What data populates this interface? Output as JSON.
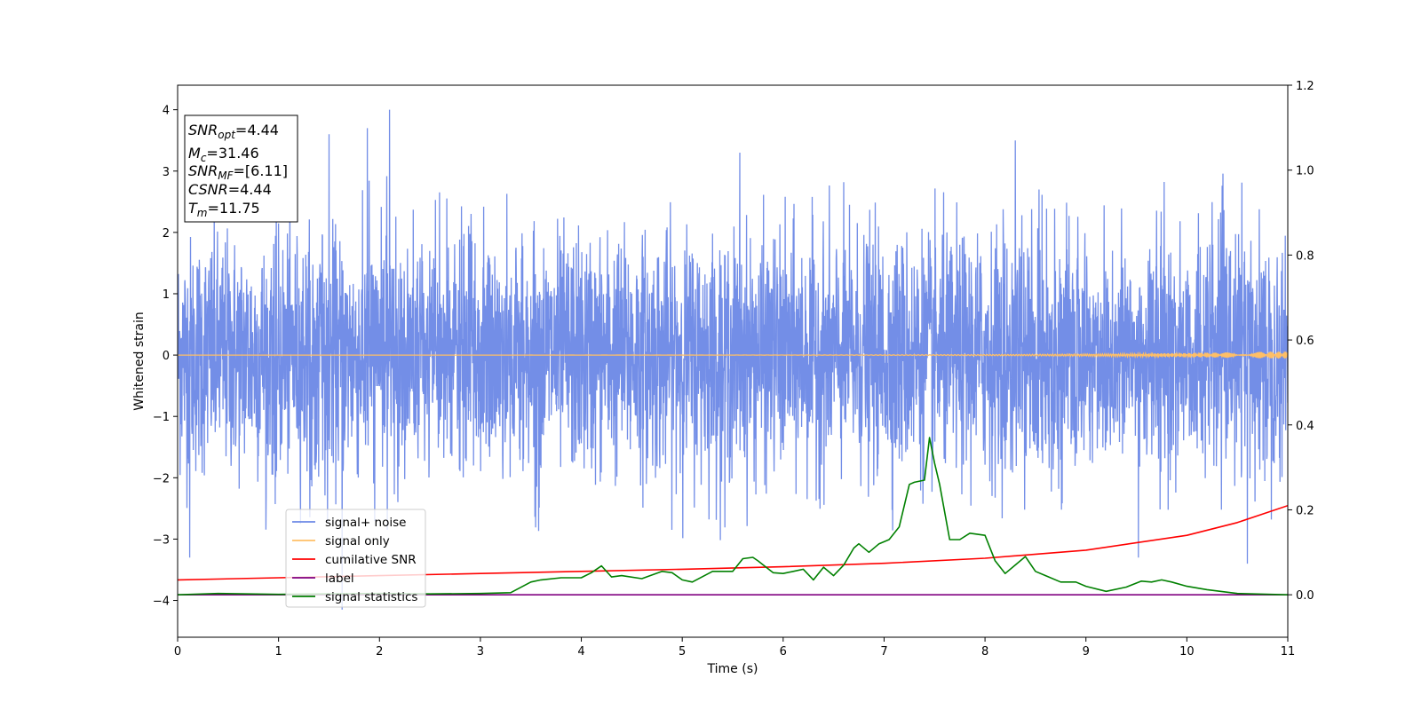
{
  "chart_data": {
    "type": "line",
    "xlabel": "Time (s)",
    "ylabel": "Whitened strain",
    "xlim": [
      0,
      11
    ],
    "ylim": [
      -4.6,
      4.4
    ],
    "y2lim": [
      -0.1,
      1.2
    ],
    "x_ticks": [
      0,
      1,
      2,
      3,
      4,
      5,
      6,
      7,
      8,
      9,
      10,
      11
    ],
    "y_ticks": [
      -4,
      -3,
      -2,
      -1,
      0,
      1,
      2,
      3,
      4
    ],
    "y2_ticks": [
      "0.0",
      "0.2",
      "0.4",
      "0.6",
      "0.8",
      "1.0",
      "1.2"
    ],
    "grid": false,
    "legend_position": "lower-left",
    "stats_box": {
      "snr_opt": "4.44",
      "mc": "31.46",
      "snr_mf": "[6.11]",
      "csnr": "4.44",
      "tm": "11.75"
    },
    "series": [
      {
        "name": "signal+ noise",
        "color": "#6b88e6",
        "axis": "left",
        "description_values": "dense noise between about -2.8 and 3.0 with spikes",
        "peaks": [
          {
            "x": 2.1,
            "y": 4.0
          },
          {
            "x": 1.5,
            "y": 3.6
          },
          {
            "x": 1.88,
            "y": 3.7
          },
          {
            "x": 8.3,
            "y": 3.5
          },
          {
            "x": 5.57,
            "y": 3.3
          },
          {
            "x": 1.63,
            "y": -4.15
          },
          {
            "x": 0.12,
            "y": -3.3
          },
          {
            "x": 9.52,
            "y": -3.3
          },
          {
            "x": 10.6,
            "y": -3.4
          }
        ]
      },
      {
        "name": "signal only",
        "color": "#ffbf66",
        "axis": "left",
        "x": [
          0,
          11
        ],
        "y": [
          0,
          0
        ],
        "chirp_amplitude_end": 0.06
      },
      {
        "name": "cumilative SNR",
        "color": "#ff0000",
        "axis": "right",
        "x": [
          0,
          1,
          2,
          3,
          4,
          5,
          6,
          7,
          8,
          9,
          10,
          10.5,
          11
        ],
        "y": [
          0.035,
          0.04,
          0.045,
          0.05,
          0.055,
          0.06,
          0.066,
          0.074,
          0.086,
          0.105,
          0.14,
          0.17,
          0.21
        ]
      },
      {
        "name": "label",
        "color": "#800080",
        "axis": "right",
        "x": [
          0,
          11
        ],
        "y": [
          0,
          0
        ]
      },
      {
        "name": "signal statistics",
        "color": "#008000",
        "axis": "right",
        "x": [
          0,
          0.4,
          1.0,
          2.0,
          2.5,
          3.0,
          3.3,
          3.5,
          3.6,
          3.8,
          3.9,
          4.0,
          4.1,
          4.2,
          4.3,
          4.4,
          4.6,
          4.8,
          4.9,
          5.0,
          5.1,
          5.3,
          5.5,
          5.6,
          5.7,
          5.75,
          5.9,
          6.0,
          6.1,
          6.2,
          6.3,
          6.4,
          6.5,
          6.6,
          6.7,
          6.75,
          6.85,
          6.95,
          7.05,
          7.15,
          7.25,
          7.3,
          7.4,
          7.45,
          7.5,
          7.55,
          7.65,
          7.75,
          7.85,
          8.0,
          8.1,
          8.2,
          8.4,
          8.5,
          8.6,
          8.75,
          8.9,
          9.0,
          9.2,
          9.4,
          9.55,
          9.65,
          9.75,
          9.85,
          10.0,
          10.2,
          10.5,
          11.0
        ],
        "y": [
          0.0,
          0.003,
          0.001,
          0.003,
          0.002,
          0.003,
          0.005,
          0.03,
          0.035,
          0.04,
          0.04,
          0.04,
          0.052,
          0.068,
          0.042,
          0.045,
          0.038,
          0.055,
          0.052,
          0.035,
          0.03,
          0.055,
          0.055,
          0.085,
          0.088,
          0.08,
          0.052,
          0.05,
          0.055,
          0.06,
          0.035,
          0.065,
          0.045,
          0.07,
          0.11,
          0.12,
          0.1,
          0.12,
          0.13,
          0.16,
          0.26,
          0.265,
          0.27,
          0.37,
          0.31,
          0.26,
          0.13,
          0.13,
          0.145,
          0.14,
          0.08,
          0.05,
          0.09,
          0.055,
          0.045,
          0.03,
          0.03,
          0.02,
          0.008,
          0.018,
          0.032,
          0.03,
          0.035,
          0.03,
          0.02,
          0.012,
          0.003,
          0.0
        ]
      }
    ]
  }
}
